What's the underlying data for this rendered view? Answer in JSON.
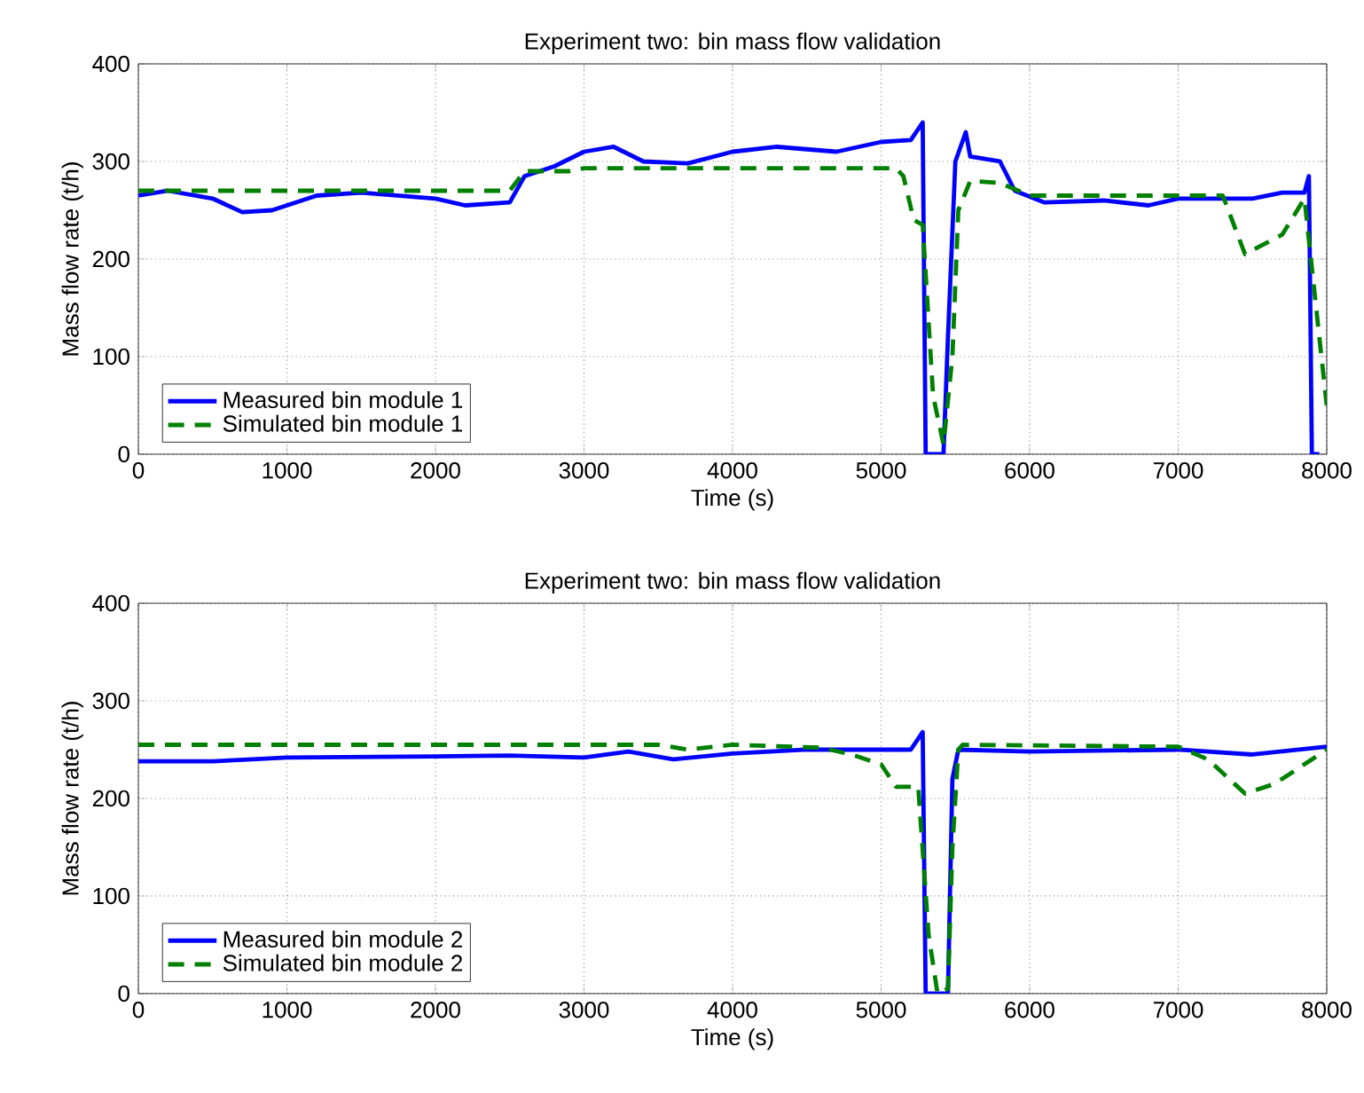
{
  "chart_data": [
    {
      "type": "line",
      "title": "Experiment two: bin mass flow validation",
      "xlabel": "Time (s)",
      "ylabel": "Mass flow rate (t/h)",
      "xlim": [
        0,
        8000
      ],
      "ylim": [
        0,
        400
      ],
      "xticks": [
        0,
        1000,
        2000,
        3000,
        4000,
        5000,
        6000,
        7000,
        8000
      ],
      "yticks": [
        0,
        100,
        200,
        300,
        400
      ],
      "grid": true,
      "legend": "bottom left",
      "series": [
        {
          "name": "Measured bin module 1",
          "color": "#0000ff",
          "line_style": "solid",
          "x": [
            0,
            200,
            500,
            700,
            900,
            1200,
            1500,
            2000,
            2200,
            2500,
            2600,
            2800,
            3000,
            3200,
            3400,
            3700,
            4000,
            4300,
            4700,
            5000,
            5200,
            5280,
            5300,
            5420,
            5450,
            5500,
            5570,
            5600,
            5800,
            5900,
            6100,
            6500,
            6800,
            7000,
            7500,
            7700,
            7850,
            7880,
            7900,
            7950
          ],
          "values": [
            265,
            270,
            262,
            248,
            250,
            265,
            268,
            262,
            255,
            258,
            285,
            295,
            310,
            315,
            300,
            298,
            310,
            315,
            310,
            320,
            322,
            340,
            0,
            0,
            120,
            300,
            330,
            305,
            300,
            270,
            258,
            260,
            255,
            262,
            262,
            268,
            268,
            285,
            0,
            0
          ]
        },
        {
          "name": "Simulated bin module 1",
          "color": "#008000",
          "line_style": "dashed",
          "x": [
            0,
            2500,
            2600,
            2900,
            3000,
            5100,
            5150,
            5220,
            5280,
            5350,
            5420,
            5480,
            5520,
            5600,
            5800,
            6000,
            7300,
            7450,
            7700,
            7850,
            7950,
            8000
          ],
          "values": [
            270,
            270,
            290,
            290,
            293,
            293,
            285,
            240,
            235,
            60,
            10,
            100,
            250,
            280,
            278,
            265,
            265,
            205,
            225,
            262,
            120,
            50
          ]
        }
      ]
    },
    {
      "type": "line",
      "title": "Experiment two: bin mass flow validation",
      "xlabel": "Time (s)",
      "ylabel": "Mass flow rate (t/h)",
      "xlim": [
        0,
        8000
      ],
      "ylim": [
        0,
        400
      ],
      "xticks": [
        0,
        1000,
        2000,
        3000,
        4000,
        5000,
        6000,
        7000,
        8000
      ],
      "yticks": [
        0,
        100,
        200,
        300,
        400
      ],
      "grid": true,
      "legend": "bottom left",
      "series": [
        {
          "name": "Measured bin module 2",
          "color": "#0000ff",
          "line_style": "solid",
          "x": [
            0,
            500,
            1000,
            2000,
            2500,
            3000,
            3300,
            3600,
            4000,
            4500,
            5200,
            5280,
            5300,
            5450,
            5480,
            5520,
            6000,
            7000,
            7500,
            8000
          ],
          "values": [
            238,
            238,
            242,
            243,
            244,
            242,
            248,
            240,
            246,
            250,
            250,
            268,
            0,
            0,
            220,
            250,
            248,
            250,
            245,
            253
          ]
        },
        {
          "name": "Simulated bin module 2",
          "color": "#008000",
          "line_style": "dashed",
          "x": [
            0,
            3500,
            3700,
            4000,
            4600,
            4800,
            5000,
            5100,
            5250,
            5320,
            5380,
            5450,
            5480,
            5520,
            5550,
            7000,
            7200,
            7450,
            7650,
            8000
          ],
          "values": [
            255,
            255,
            250,
            255,
            252,
            245,
            235,
            212,
            212,
            60,
            0,
            5,
            150,
            250,
            255,
            253,
            240,
            205,
            215,
            250
          ]
        }
      ]
    }
  ]
}
